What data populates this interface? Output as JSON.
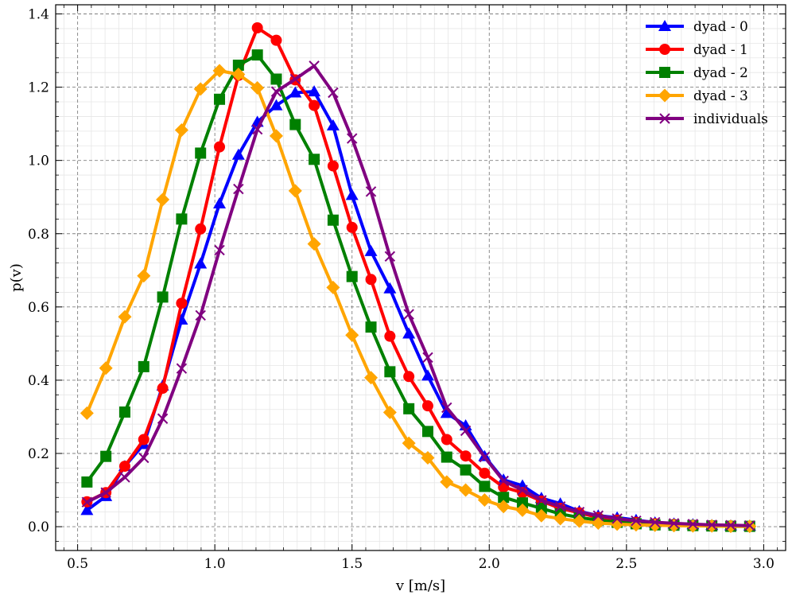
{
  "chart_data": {
    "type": "line",
    "title": "",
    "xlabel": "v [m/s]",
    "ylabel": "p(v)",
    "xlim": [
      0.42,
      3.08
    ],
    "ylim": [
      -0.065,
      1.425
    ],
    "xticks": [
      0.5,
      1.0,
      1.5,
      2.0,
      2.5,
      3.0
    ],
    "xtick_labels": [
      "0.5",
      "1.0",
      "1.5",
      "2.0",
      "2.5",
      "3.0"
    ],
    "yticks": [
      0.0,
      0.2,
      0.4,
      0.6,
      0.8,
      1.0,
      1.2,
      1.4
    ],
    "ytick_labels": [
      "0.0",
      "0.2",
      "0.4",
      "0.6",
      "0.8",
      "1.0",
      "1.2",
      "1.4"
    ],
    "grid": true,
    "legend_position": "top-right",
    "x": [
      0.534,
      0.603,
      0.672,
      0.741,
      0.81,
      0.879,
      0.948,
      1.017,
      1.086,
      1.155,
      1.224,
      1.293,
      1.362,
      1.431,
      1.5,
      1.569,
      1.638,
      1.707,
      1.776,
      1.845,
      1.914,
      1.983,
      2.052,
      2.121,
      2.19,
      2.259,
      2.328,
      2.397,
      2.466,
      2.535,
      2.604,
      2.673,
      2.742,
      2.811,
      2.88,
      2.949
    ],
    "series": [
      {
        "name": "dyad - 0",
        "color": "#0000ff",
        "marker": "triangle",
        "values": [
          0.045,
          0.083,
          0.165,
          0.225,
          0.385,
          0.565,
          0.718,
          0.882,
          1.015,
          1.105,
          1.15,
          1.185,
          1.188,
          1.095,
          0.905,
          0.752,
          0.65,
          0.527,
          0.412,
          0.31,
          0.276,
          0.192,
          0.128,
          0.112,
          0.078,
          0.063,
          0.042,
          0.03,
          0.025,
          0.018,
          0.011,
          0.008,
          0.006,
          0.004,
          0.003,
          0.002
        ]
      },
      {
        "name": "dyad - 1",
        "color": "#ff0000",
        "marker": "circle",
        "values": [
          0.068,
          0.093,
          0.165,
          0.238,
          0.378,
          0.61,
          0.813,
          1.037,
          1.232,
          1.362,
          1.328,
          1.22,
          1.15,
          0.985,
          0.817,
          0.675,
          0.52,
          0.41,
          0.33,
          0.238,
          0.193,
          0.146,
          0.108,
          0.093,
          0.07,
          0.05,
          0.038,
          0.025,
          0.018,
          0.012,
          0.008,
          0.006,
          0.004,
          0.003,
          0.002,
          0.001
        ]
      },
      {
        "name": "dyad - 2",
        "color": "#008000",
        "marker": "square",
        "values": [
          0.122,
          0.192,
          0.313,
          0.437,
          0.627,
          0.84,
          1.02,
          1.167,
          1.26,
          1.288,
          1.222,
          1.098,
          1.003,
          0.837,
          0.683,
          0.545,
          0.423,
          0.322,
          0.26,
          0.19,
          0.155,
          0.11,
          0.08,
          0.065,
          0.05,
          0.035,
          0.025,
          0.018,
          0.012,
          0.008,
          0.005,
          0.004,
          0.003,
          0.002,
          0.001,
          0.001
        ]
      },
      {
        "name": "dyad - 3",
        "color": "#ffa500",
        "marker": "diamond",
        "values": [
          0.31,
          0.433,
          0.573,
          0.685,
          0.893,
          1.083,
          1.195,
          1.245,
          1.235,
          1.198,
          1.067,
          0.917,
          0.772,
          0.653,
          0.523,
          0.407,
          0.312,
          0.228,
          0.188,
          0.122,
          0.1,
          0.073,
          0.055,
          0.045,
          0.03,
          0.022,
          0.015,
          0.01,
          0.007,
          0.005,
          0.004,
          0.003,
          0.002,
          0.002,
          0.001,
          0.001
        ]
      },
      {
        "name": "individuals",
        "color": "#800080",
        "marker": "x",
        "values": [
          0.067,
          0.093,
          0.135,
          0.188,
          0.295,
          0.432,
          0.577,
          0.755,
          0.922,
          1.085,
          1.188,
          1.222,
          1.258,
          1.185,
          1.06,
          0.915,
          0.738,
          0.58,
          0.462,
          0.325,
          0.262,
          0.19,
          0.125,
          0.1,
          0.072,
          0.055,
          0.04,
          0.03,
          0.022,
          0.016,
          0.012,
          0.009,
          0.007,
          0.005,
          0.004,
          0.003
        ]
      }
    ]
  }
}
